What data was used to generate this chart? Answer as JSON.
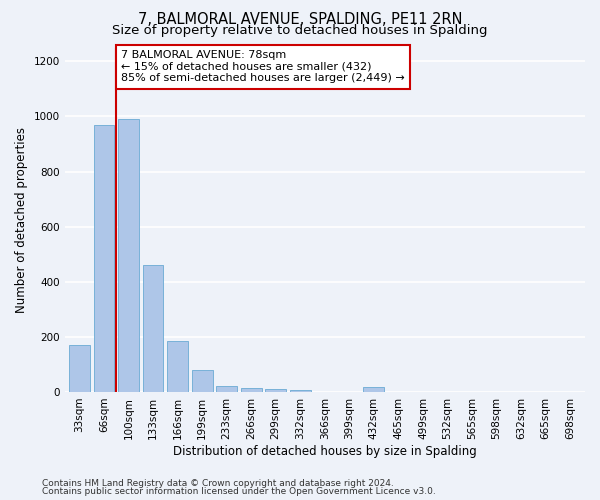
{
  "title_line1": "7, BALMORAL AVENUE, SPALDING, PE11 2RN",
  "title_line2": "Size of property relative to detached houses in Spalding",
  "xlabel": "Distribution of detached houses by size in Spalding",
  "ylabel": "Number of detached properties",
  "categories": [
    "33sqm",
    "66sqm",
    "100sqm",
    "133sqm",
    "166sqm",
    "199sqm",
    "233sqm",
    "266sqm",
    "299sqm",
    "332sqm",
    "366sqm",
    "399sqm",
    "432sqm",
    "465sqm",
    "499sqm",
    "532sqm",
    "565sqm",
    "598sqm",
    "632sqm",
    "665sqm",
    "698sqm"
  ],
  "values": [
    170,
    970,
    990,
    460,
    185,
    80,
    22,
    16,
    10,
    8,
    0,
    0,
    18,
    0,
    0,
    0,
    0,
    0,
    0,
    0,
    0
  ],
  "bar_color": "#aec6e8",
  "bar_edge_color": "#6aaad4",
  "vline_x_index": 1.5,
  "vline_color": "#cc0000",
  "annotation_text": "7 BALMORAL AVENUE: 78sqm\n← 15% of detached houses are smaller (432)\n85% of semi-detached houses are larger (2,449) →",
  "annotation_box_color": "#ffffff",
  "annotation_box_edge_color": "#cc0000",
  "ylim": [
    0,
    1250
  ],
  "yticks": [
    0,
    200,
    400,
    600,
    800,
    1000,
    1200
  ],
  "footer_line1": "Contains HM Land Registry data © Crown copyright and database right 2024.",
  "footer_line2": "Contains public sector information licensed under the Open Government Licence v3.0.",
  "background_color": "#eef2f9",
  "plot_background_color": "#eef2f9",
  "grid_color": "#ffffff",
  "title_fontsize": 10.5,
  "subtitle_fontsize": 9.5,
  "axis_label_fontsize": 8.5,
  "tick_fontsize": 7.5,
  "annotation_fontsize": 8,
  "footer_fontsize": 6.5
}
